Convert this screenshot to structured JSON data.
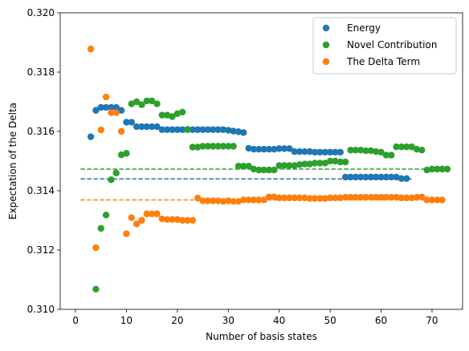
{
  "chart_data": {
    "type": "scatter",
    "title": "",
    "xlabel": "Number of basis states",
    "ylabel": "Expectation of the Delta",
    "xlim": [
      -3,
      76
    ],
    "ylim": [
      0.31,
      0.32
    ],
    "xticks": [
      0,
      10,
      20,
      30,
      40,
      50,
      60,
      70
    ],
    "yticks": [
      0.31,
      0.312,
      0.314,
      0.316,
      0.318,
      0.32
    ],
    "ytick_labels": [
      "0.310",
      "0.312",
      "0.314",
      "0.316",
      "0.318",
      "0.320"
    ],
    "grid": false,
    "legend_position": "top-right",
    "series": [
      {
        "name": "Energy",
        "color": "#1f77b4",
        "points": [
          [
            3,
            0.31582
          ],
          [
            4,
            0.31671
          ],
          [
            5,
            0.31681
          ],
          [
            6,
            0.31681
          ],
          [
            7,
            0.31681
          ],
          [
            8,
            0.31681
          ],
          [
            9,
            0.31671
          ],
          [
            10,
            0.31631
          ],
          [
            11,
            0.31631
          ],
          [
            12,
            0.31616
          ],
          [
            13,
            0.31616
          ],
          [
            14,
            0.31616
          ],
          [
            15,
            0.31616
          ],
          [
            16,
            0.31616
          ],
          [
            17,
            0.31606
          ],
          [
            18,
            0.31606
          ],
          [
            19,
            0.31606
          ],
          [
            20,
            0.31606
          ],
          [
            21,
            0.31606
          ],
          [
            22,
            0.31606
          ],
          [
            23,
            0.31606
          ],
          [
            24,
            0.31606
          ],
          [
            25,
            0.31606
          ],
          [
            26,
            0.31606
          ],
          [
            27,
            0.31606
          ],
          [
            28,
            0.31606
          ],
          [
            29,
            0.31606
          ],
          [
            30,
            0.31604
          ],
          [
            31,
            0.31601
          ],
          [
            32,
            0.31599
          ],
          [
            33,
            0.31596
          ],
          [
            34,
            0.31543
          ],
          [
            35,
            0.3154
          ],
          [
            36,
            0.3154
          ],
          [
            37,
            0.3154
          ],
          [
            38,
            0.3154
          ],
          [
            39,
            0.3154
          ],
          [
            40,
            0.31542
          ],
          [
            41,
            0.31542
          ],
          [
            42,
            0.31542
          ],
          [
            43,
            0.31532
          ],
          [
            44,
            0.31532
          ],
          [
            45,
            0.31532
          ],
          [
            46,
            0.31532
          ],
          [
            47,
            0.3153
          ],
          [
            48,
            0.3153
          ],
          [
            49,
            0.3153
          ],
          [
            50,
            0.3153
          ],
          [
            51,
            0.3153
          ],
          [
            52,
            0.3153
          ],
          [
            53,
            0.31446
          ],
          [
            54,
            0.31446
          ],
          [
            55,
            0.31446
          ],
          [
            56,
            0.31446
          ],
          [
            57,
            0.31446
          ],
          [
            58,
            0.31446
          ],
          [
            59,
            0.31446
          ],
          [
            60,
            0.31446
          ],
          [
            61,
            0.31446
          ],
          [
            62,
            0.31446
          ],
          [
            63,
            0.31446
          ],
          [
            64,
            0.31441
          ],
          [
            65,
            0.31441
          ]
        ],
        "hline": 0.3144,
        "hline_range": [
          1,
          66
        ]
      },
      {
        "name": "Novel Contribution",
        "color": "#2ca02c",
        "points": [
          [
            4,
            0.31068
          ],
          [
            5,
            0.31273
          ],
          [
            6,
            0.31318
          ],
          [
            7,
            0.31437
          ],
          [
            8,
            0.3146
          ],
          [
            9,
            0.31521
          ],
          [
            10,
            0.31526
          ],
          [
            11,
            0.31693
          ],
          [
            12,
            0.317
          ],
          [
            13,
            0.3169
          ],
          [
            14,
            0.31703
          ],
          [
            15,
            0.31703
          ],
          [
            16,
            0.31693
          ],
          [
            17,
            0.31655
          ],
          [
            18,
            0.31655
          ],
          [
            19,
            0.3165
          ],
          [
            20,
            0.3166
          ],
          [
            21,
            0.31665
          ],
          [
            22,
            0.31607
          ],
          [
            23,
            0.31547
          ],
          [
            24,
            0.31547
          ],
          [
            25,
            0.3155
          ],
          [
            26,
            0.3155
          ],
          [
            27,
            0.3155
          ],
          [
            28,
            0.3155
          ],
          [
            29,
            0.3155
          ],
          [
            30,
            0.3155
          ],
          [
            31,
            0.3155
          ],
          [
            32,
            0.31483
          ],
          [
            33,
            0.31483
          ],
          [
            34,
            0.31483
          ],
          [
            35,
            0.31473
          ],
          [
            36,
            0.3147
          ],
          [
            37,
            0.3147
          ],
          [
            38,
            0.3147
          ],
          [
            39,
            0.3147
          ],
          [
            40,
            0.31485
          ],
          [
            41,
            0.31485
          ],
          [
            42,
            0.31485
          ],
          [
            43,
            0.31485
          ],
          [
            44,
            0.31488
          ],
          [
            45,
            0.3149
          ],
          [
            46,
            0.3149
          ],
          [
            47,
            0.31493
          ],
          [
            48,
            0.31493
          ],
          [
            49,
            0.31493
          ],
          [
            50,
            0.315
          ],
          [
            51,
            0.315
          ],
          [
            52,
            0.31497
          ],
          [
            53,
            0.31497
          ],
          [
            54,
            0.31537
          ],
          [
            55,
            0.31537
          ],
          [
            56,
            0.31537
          ],
          [
            57,
            0.31535
          ],
          [
            58,
            0.31535
          ],
          [
            59,
            0.31532
          ],
          [
            60,
            0.3153
          ],
          [
            61,
            0.3152
          ],
          [
            62,
            0.3152
          ],
          [
            63,
            0.31548
          ],
          [
            64,
            0.31548
          ],
          [
            65,
            0.31548
          ],
          [
            66,
            0.31548
          ],
          [
            67,
            0.3154
          ],
          [
            68,
            0.31537
          ],
          [
            69,
            0.3147
          ],
          [
            70,
            0.31473
          ],
          [
            71,
            0.31473
          ],
          [
            72,
            0.31473
          ],
          [
            73,
            0.31473
          ]
        ],
        "hline": 0.31473,
        "hline_range": [
          1,
          73
        ]
      },
      {
        "name": "The Delta Term",
        "color": "#ff7f0e",
        "points": [
          [
            3,
            0.31878
          ],
          [
            4,
            0.31208
          ],
          [
            5,
            0.31605
          ],
          [
            6,
            0.31716
          ],
          [
            7,
            0.31663
          ],
          [
            8,
            0.31663
          ],
          [
            9,
            0.316
          ],
          [
            10,
            0.31255
          ],
          [
            11,
            0.31309
          ],
          [
            12,
            0.31288
          ],
          [
            13,
            0.313
          ],
          [
            14,
            0.31322
          ],
          [
            15,
            0.31322
          ],
          [
            16,
            0.31322
          ],
          [
            17,
            0.31305
          ],
          [
            18,
            0.31303
          ],
          [
            19,
            0.31303
          ],
          [
            20,
            0.31303
          ],
          [
            21,
            0.313
          ],
          [
            22,
            0.313
          ],
          [
            23,
            0.313
          ],
          [
            24,
            0.31375
          ],
          [
            25,
            0.31366
          ],
          [
            26,
            0.31366
          ],
          [
            27,
            0.31366
          ],
          [
            28,
            0.31366
          ],
          [
            29,
            0.31364
          ],
          [
            30,
            0.31366
          ],
          [
            31,
            0.31364
          ],
          [
            32,
            0.31364
          ],
          [
            33,
            0.31369
          ],
          [
            34,
            0.31369
          ],
          [
            35,
            0.31369
          ],
          [
            36,
            0.31369
          ],
          [
            37,
            0.31369
          ],
          [
            38,
            0.31379
          ],
          [
            39,
            0.31379
          ],
          [
            40,
            0.31376
          ],
          [
            41,
            0.31376
          ],
          [
            42,
            0.31376
          ],
          [
            43,
            0.31376
          ],
          [
            44,
            0.31376
          ],
          [
            45,
            0.31376
          ],
          [
            46,
            0.31374
          ],
          [
            47,
            0.31374
          ],
          [
            48,
            0.31374
          ],
          [
            49,
            0.31374
          ],
          [
            50,
            0.31376
          ],
          [
            51,
            0.31376
          ],
          [
            52,
            0.31376
          ],
          [
            53,
            0.31378
          ],
          [
            54,
            0.31378
          ],
          [
            55,
            0.31378
          ],
          [
            56,
            0.31378
          ],
          [
            57,
            0.31378
          ],
          [
            58,
            0.31378
          ],
          [
            59,
            0.31378
          ],
          [
            60,
            0.31378
          ],
          [
            61,
            0.31378
          ],
          [
            62,
            0.31378
          ],
          [
            63,
            0.31378
          ],
          [
            64,
            0.31376
          ],
          [
            65,
            0.31376
          ],
          [
            66,
            0.31376
          ],
          [
            67,
            0.31378
          ],
          [
            68,
            0.31379
          ],
          [
            69,
            0.31369
          ],
          [
            70,
            0.31369
          ],
          [
            71,
            0.31369
          ],
          [
            72,
            0.31369
          ]
        ],
        "hline": 0.31369,
        "hline_range": [
          1,
          72
        ]
      }
    ]
  }
}
